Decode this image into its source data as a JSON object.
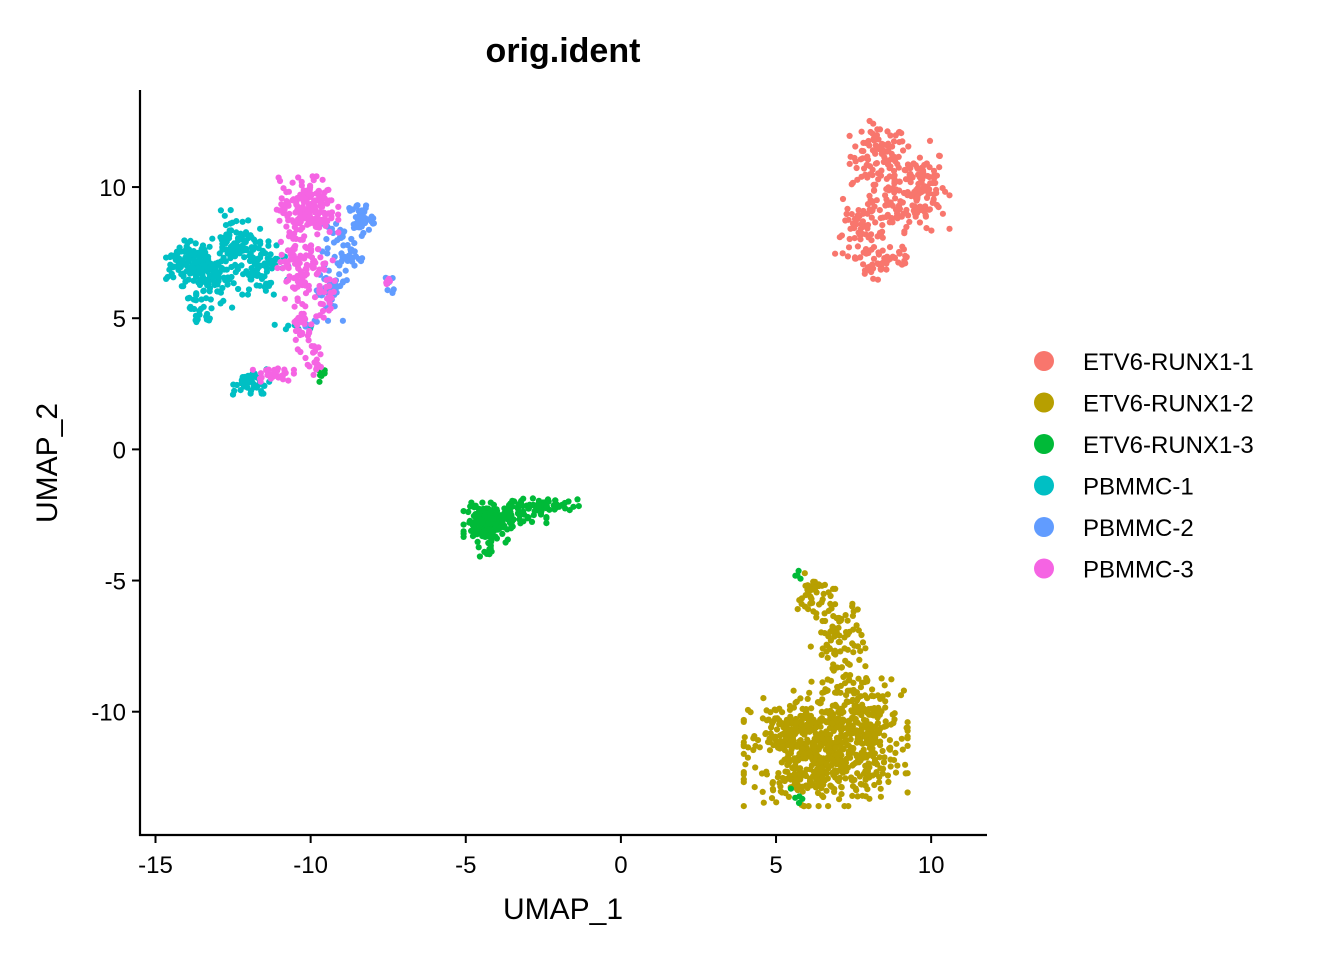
{
  "chart_data": {
    "type": "scatter",
    "title": "orig.ident",
    "xlabel": "UMAP_1",
    "ylabel": "UMAP_2",
    "xlim": [
      -15.5,
      11.8
    ],
    "ylim": [
      -14.7,
      13.7
    ],
    "xticks": [
      -15,
      -10,
      -5,
      0,
      5,
      10
    ],
    "yticks": [
      -10,
      -5,
      0,
      5,
      10
    ],
    "xtick_labels": [
      "-15",
      "-10",
      "-5",
      "0",
      "5",
      "10"
    ],
    "ytick_labels": [
      "-10",
      "-5",
      "0",
      "5",
      "10"
    ],
    "grid": false,
    "legend_position": "right",
    "series": [
      {
        "name": "ETV6-RUNX1-1",
        "color": "#F8766D",
        "clusters": [
          {
            "center": [
              8.3,
              11.2
            ],
            "spread": [
              0.45,
              0.6
            ],
            "n": 90
          },
          {
            "center": [
              9.6,
              10.0
            ],
            "spread": [
              0.45,
              0.8
            ],
            "n": 110
          },
          {
            "center": [
              8.7,
              9.4
            ],
            "spread": [
              0.7,
              0.6
            ],
            "n": 80
          },
          {
            "center": [
              7.7,
              8.2
            ],
            "spread": [
              0.4,
              0.4
            ],
            "n": 50
          },
          {
            "center": [
              8.6,
              7.3
            ],
            "spread": [
              0.5,
              0.4
            ],
            "n": 40
          },
          {
            "center": [
              8.1,
              6.8
            ],
            "spread": [
              0.2,
              0.2
            ],
            "n": 10
          },
          {
            "center": [
              5.7,
              -12.9
            ],
            "spread": [
              0.1,
              0.1
            ],
            "n": 4
          }
        ]
      },
      {
        "name": "ETV6-RUNX1-2",
        "color": "#B79F00",
        "clusters": [
          {
            "center": [
              6.6,
              -11.4
            ],
            "spread": [
              1.2,
              1.0
            ],
            "n": 550
          },
          {
            "center": [
              7.8,
              -10.4
            ],
            "spread": [
              0.6,
              1.0
            ],
            "n": 150
          },
          {
            "center": [
              7.0,
              -7.3
            ],
            "spread": [
              0.4,
              0.9
            ],
            "n": 90
          },
          {
            "center": [
              6.2,
              -5.6
            ],
            "spread": [
              0.25,
              0.4
            ],
            "n": 40
          },
          {
            "center": [
              5.4,
              -10.9
            ],
            "spread": [
              0.5,
              0.4
            ],
            "n": 60
          },
          {
            "center": [
              6.0,
              -12.7
            ],
            "spread": [
              0.5,
              0.4
            ],
            "n": 50
          }
        ]
      },
      {
        "name": "ETV6-RUNX1-3",
        "color": "#00BA38",
        "clusters": [
          {
            "center": [
              -4.3,
              -2.8
            ],
            "spread": [
              0.35,
              0.35
            ],
            "n": 170
          },
          {
            "center": [
              -3.5,
              -2.5
            ],
            "spread": [
              0.5,
              0.3
            ],
            "n": 60
          },
          {
            "center": [
              -2.4,
              -2.15
            ],
            "spread": [
              0.5,
              0.12
            ],
            "n": 40
          },
          {
            "center": [
              -4.3,
              -3.8
            ],
            "spread": [
              0.15,
              0.2
            ],
            "n": 12
          },
          {
            "center": [
              -9.6,
              2.9
            ],
            "spread": [
              0.2,
              0.15
            ],
            "n": 8
          },
          {
            "center": [
              5.8,
              -4.8
            ],
            "spread": [
              0.08,
              0.08
            ],
            "n": 4
          },
          {
            "center": [
              5.7,
              -13.3
            ],
            "spread": [
              0.1,
              0.2
            ],
            "n": 5
          }
        ]
      },
      {
        "name": "PBMMC-1",
        "color": "#00BFC4",
        "clusters": [
          {
            "center": [
              -14.0,
              7.1
            ],
            "spread": [
              0.3,
              0.4
            ],
            "n": 90
          },
          {
            "center": [
              -13.3,
              6.7
            ],
            "spread": [
              0.35,
              0.6
            ],
            "n": 120
          },
          {
            "center": [
              -12.4,
              7.8
            ],
            "spread": [
              0.35,
              0.6
            ],
            "n": 90
          },
          {
            "center": [
              -11.6,
              7.0
            ],
            "spread": [
              0.4,
              0.5
            ],
            "n": 70
          },
          {
            "center": [
              -13.5,
              5.1
            ],
            "spread": [
              0.2,
              0.2
            ],
            "n": 15
          },
          {
            "center": [
              -11.9,
              2.5
            ],
            "spread": [
              0.3,
              0.25
            ],
            "n": 40
          },
          {
            "center": [
              -10.5,
              4.7
            ],
            "spread": [
              0.3,
              0.15
            ],
            "n": 12
          }
        ]
      },
      {
        "name": "PBMMC-2",
        "color": "#619CFF",
        "clusters": [
          {
            "center": [
              -8.4,
              8.8
            ],
            "spread": [
              0.2,
              0.3
            ],
            "n": 40
          },
          {
            "center": [
              -9.0,
              7.5
            ],
            "spread": [
              0.3,
              0.5
            ],
            "n": 50
          },
          {
            "center": [
              -9.4,
              6.0
            ],
            "spread": [
              0.2,
              0.5
            ],
            "n": 40
          },
          {
            "center": [
              -7.5,
              6.3
            ],
            "spread": [
              0.08,
              0.2
            ],
            "n": 10
          },
          {
            "center": [
              -10.2,
              4.9
            ],
            "spread": [
              0.2,
              0.1
            ],
            "n": 6
          }
        ]
      },
      {
        "name": "PBMMC-3",
        "color": "#F564E3",
        "clusters": [
          {
            "center": [
              -10.1,
              9.2
            ],
            "spread": [
              0.45,
              0.55
            ],
            "n": 170
          },
          {
            "center": [
              -10.3,
              7.3
            ],
            "spread": [
              0.35,
              0.8
            ],
            "n": 110
          },
          {
            "center": [
              -9.5,
              6.1
            ],
            "spread": [
              0.2,
              0.6
            ],
            "n": 30
          },
          {
            "center": [
              -10.3,
              4.8
            ],
            "spread": [
              0.15,
              0.5
            ],
            "n": 25
          },
          {
            "center": [
              -10.0,
              3.5
            ],
            "spread": [
              0.15,
              0.3
            ],
            "n": 20
          },
          {
            "center": [
              -11.2,
              2.9
            ],
            "spread": [
              0.3,
              0.15
            ],
            "n": 30
          },
          {
            "center": [
              -7.5,
              6.35
            ],
            "spread": [
              0.05,
              0.1
            ],
            "n": 5
          }
        ]
      }
    ]
  }
}
